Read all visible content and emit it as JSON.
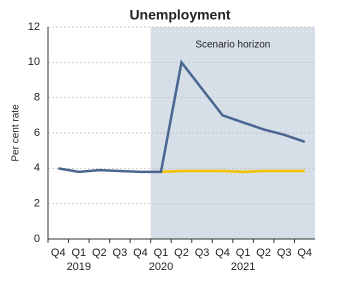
{
  "chart_data": {
    "type": "line",
    "title": "Unemployment",
    "y_label": "Per cent rate",
    "categories": [
      "Q4",
      "Q1",
      "Q2",
      "Q3",
      "Q4",
      "Q1",
      "Q2",
      "Q3",
      "Q4",
      "Q1",
      "Q2",
      "Q3",
      "Q4"
    ],
    "year_labels": [
      null,
      "2019",
      null,
      null,
      null,
      "2020",
      null,
      null,
      null,
      "2021",
      null,
      null,
      null
    ],
    "series": [
      {
        "color": "#4a6690",
        "values": [
          4.0,
          3.8,
          3.9,
          3.85,
          3.8,
          3.8,
          10.0,
          8.5,
          7.0,
          6.6,
          6.2,
          5.9,
          5.5
        ]
      },
      {
        "color": "#f2c200",
        "values": [
          null,
          null,
          null,
          null,
          null,
          3.8,
          3.85,
          3.85,
          3.85,
          3.8,
          3.85,
          3.85,
          3.85
        ]
      }
    ],
    "shaded_range": [
      5,
      12
    ],
    "shade_color": "#d6dfe7",
    "annotation": "Scenario horizon",
    "ylim": [
      0,
      12
    ],
    "yticks": [
      0,
      2,
      4,
      6,
      8,
      10,
      12
    ],
    "grid": true
  }
}
